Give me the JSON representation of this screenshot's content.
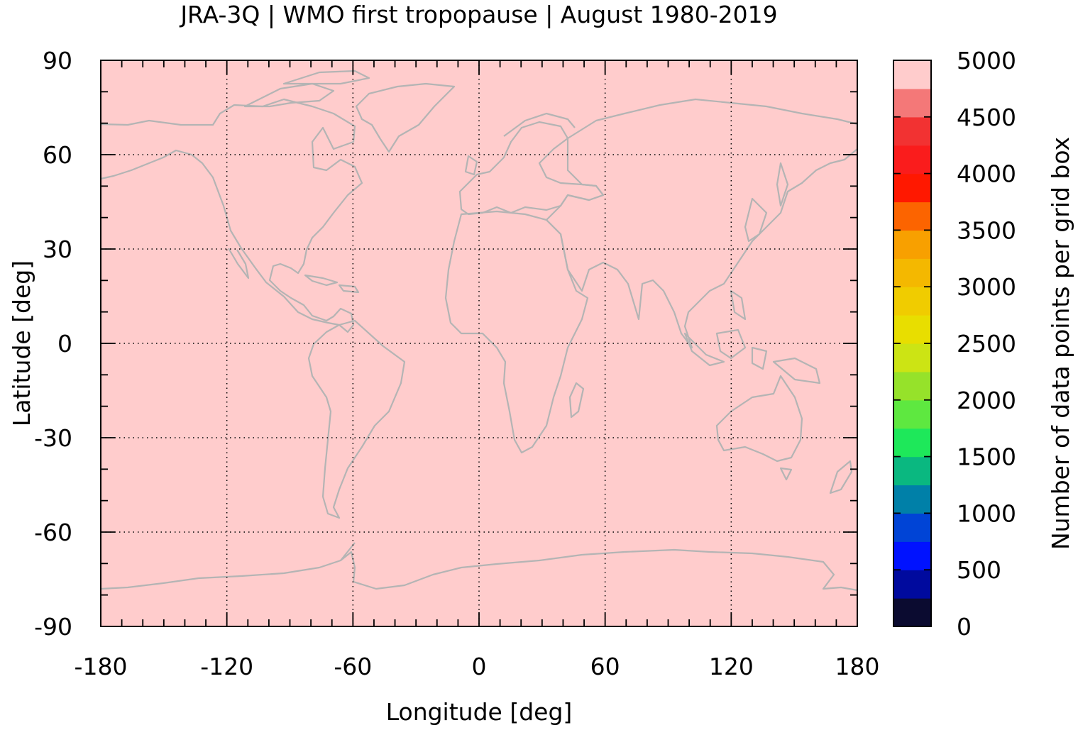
{
  "chart_data": {
    "type": "heatmap",
    "title": "JRA-3Q | WMO first tropopause | August 1980-2019",
    "xlabel": "Longitude [deg]",
    "ylabel": "Latitude [deg]",
    "xlim": [
      -180,
      180
    ],
    "ylim": [
      -90,
      90
    ],
    "x_ticks": [
      -180,
      -120,
      -60,
      0,
      60,
      120,
      180
    ],
    "x_tick_labels": [
      "-180",
      "-120",
      "-60",
      "0",
      "60",
      "120",
      "180"
    ],
    "y_ticks": [
      90,
      60,
      30,
      0,
      -30,
      -60,
      -90
    ],
    "y_tick_labels": [
      "90",
      "60",
      "30",
      "0",
      "-30",
      "-60",
      "-90"
    ],
    "grid": "dotted",
    "field_value": 5000,
    "field_color": "#ffcccc",
    "coastline_color": "#b4b4b4",
    "colorbar": {
      "label": "Number of data points per grid box",
      "placement": "right",
      "range": [
        0,
        5000
      ],
      "ticks": [
        0,
        500,
        1000,
        1500,
        2000,
        2500,
        3000,
        3500,
        4000,
        4500,
        5000
      ],
      "tick_labels": [
        "0",
        "500",
        "1000",
        "1500",
        "2000",
        "2500",
        "3000",
        "3500",
        "4000",
        "4500",
        "5000"
      ],
      "colors": [
        "#0b0b30",
        "#000a9e",
        "#0012ff",
        "#0044d6",
        "#0080a8",
        "#0ab880",
        "#1ee85a",
        "#5ee840",
        "#96e22a",
        "#cce414",
        "#e8de00",
        "#f0cc00",
        "#f4b800",
        "#f8a000",
        "#fc6400",
        "#ff1800",
        "#fa1c1c",
        "#f23232",
        "#f47878",
        "#ffcccc"
      ]
    }
  }
}
